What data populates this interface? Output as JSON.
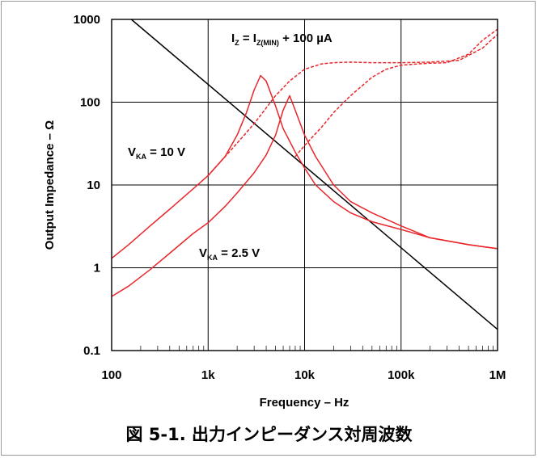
{
  "caption": "図 5-1. 出力インピーダンス対周波数",
  "chart_data": {
    "type": "line",
    "xlabel": "Frequency – Hz",
    "ylabel": "Output Impedance – Ω",
    "xscale": "log",
    "yscale": "log",
    "xlim": [
      100,
      1000000
    ],
    "ylim": [
      0.1,
      1000
    ],
    "grid": true,
    "x_ticks": [
      {
        "value": 100,
        "label": "100"
      },
      {
        "value": 1000,
        "label": "1k"
      },
      {
        "value": 10000,
        "label": "10k"
      },
      {
        "value": 100000,
        "label": "100k"
      },
      {
        "value": 1000000,
        "label": "1M"
      }
    ],
    "y_ticks": [
      {
        "value": 0.1,
        "label": "0.1"
      },
      {
        "value": 1,
        "label": "1"
      },
      {
        "value": 10,
        "label": "10"
      },
      {
        "value": 100,
        "label": "100"
      },
      {
        "value": 1000,
        "label": "1000"
      }
    ],
    "annotations": {
      "iz": {
        "main": "I",
        "sub1": "Z",
        "mid": " = I",
        "sub2": "Z(MIN)",
        "tail": " + 100 µA"
      },
      "vka10": {
        "main": "V",
        "sub": "KA",
        "tail": " = 10 V"
      },
      "vka25": {
        "main": "V",
        "sub": "KA",
        "tail": " = 2.5 V"
      }
    },
    "series": [
      {
        "color": "#000000",
        "style": "solid",
        "x": [
          160,
          1000000
        ],
        "y": [
          1000,
          0.18
        ]
      },
      {
        "color": "#e8262b",
        "style": "solid",
        "x": [
          100,
          150,
          250,
          400,
          700,
          1000,
          1500,
          2000,
          2500,
          3000,
          3500,
          4000,
          5000,
          6000,
          8000,
          10000,
          13000,
          20000,
          30000,
          50000,
          100000,
          200000,
          500000,
          1000000
        ],
        "y": [
          1.3,
          1.9,
          3.2,
          5.1,
          9,
          13,
          22,
          40,
          75,
          140,
          210,
          180,
          90,
          48,
          25,
          16,
          10,
          6.3,
          4.6,
          3.6,
          2.9,
          2.3,
          1.9,
          1.7
        ]
      },
      {
        "color": "#e8262b",
        "style": "dashed",
        "x": [
          1000,
          1500,
          2000,
          3000,
          4000,
          5000,
          7000,
          10000,
          15000,
          20000,
          30000,
          50000,
          100000,
          200000,
          400000,
          700000,
          1000000
        ],
        "y": [
          13,
          22,
          32,
          55,
          85,
          120,
          180,
          250,
          290,
          300,
          305,
          300,
          300,
          305,
          320,
          450,
          660
        ]
      },
      {
        "color": "#e8262b",
        "style": "solid",
        "x": [
          100,
          150,
          250,
          400,
          700,
          1000,
          1500,
          2000,
          3000,
          4000,
          5000,
          6000,
          7000,
          8000,
          10000,
          13000,
          20000,
          30000,
          50000,
          100000,
          200000,
          500000,
          1000000
        ],
        "y": [
          0.45,
          0.6,
          0.95,
          1.5,
          2.6,
          3.5,
          5.5,
          8,
          14,
          23,
          40,
          80,
          120,
          80,
          40,
          22,
          10,
          6.3,
          4.6,
          3.2,
          2.3,
          1.9,
          1.7
        ]
      },
      {
        "color": "#e8262b",
        "style": "dashed",
        "x": [
          8000,
          10000,
          15000,
          20000,
          30000,
          50000,
          70000,
          100000,
          150000,
          200000,
          300000,
          500000,
          700000,
          1000000
        ],
        "y": [
          22,
          30,
          50,
          75,
          120,
          200,
          250,
          280,
          290,
          295,
          300,
          380,
          560,
          760
        ]
      }
    ]
  }
}
